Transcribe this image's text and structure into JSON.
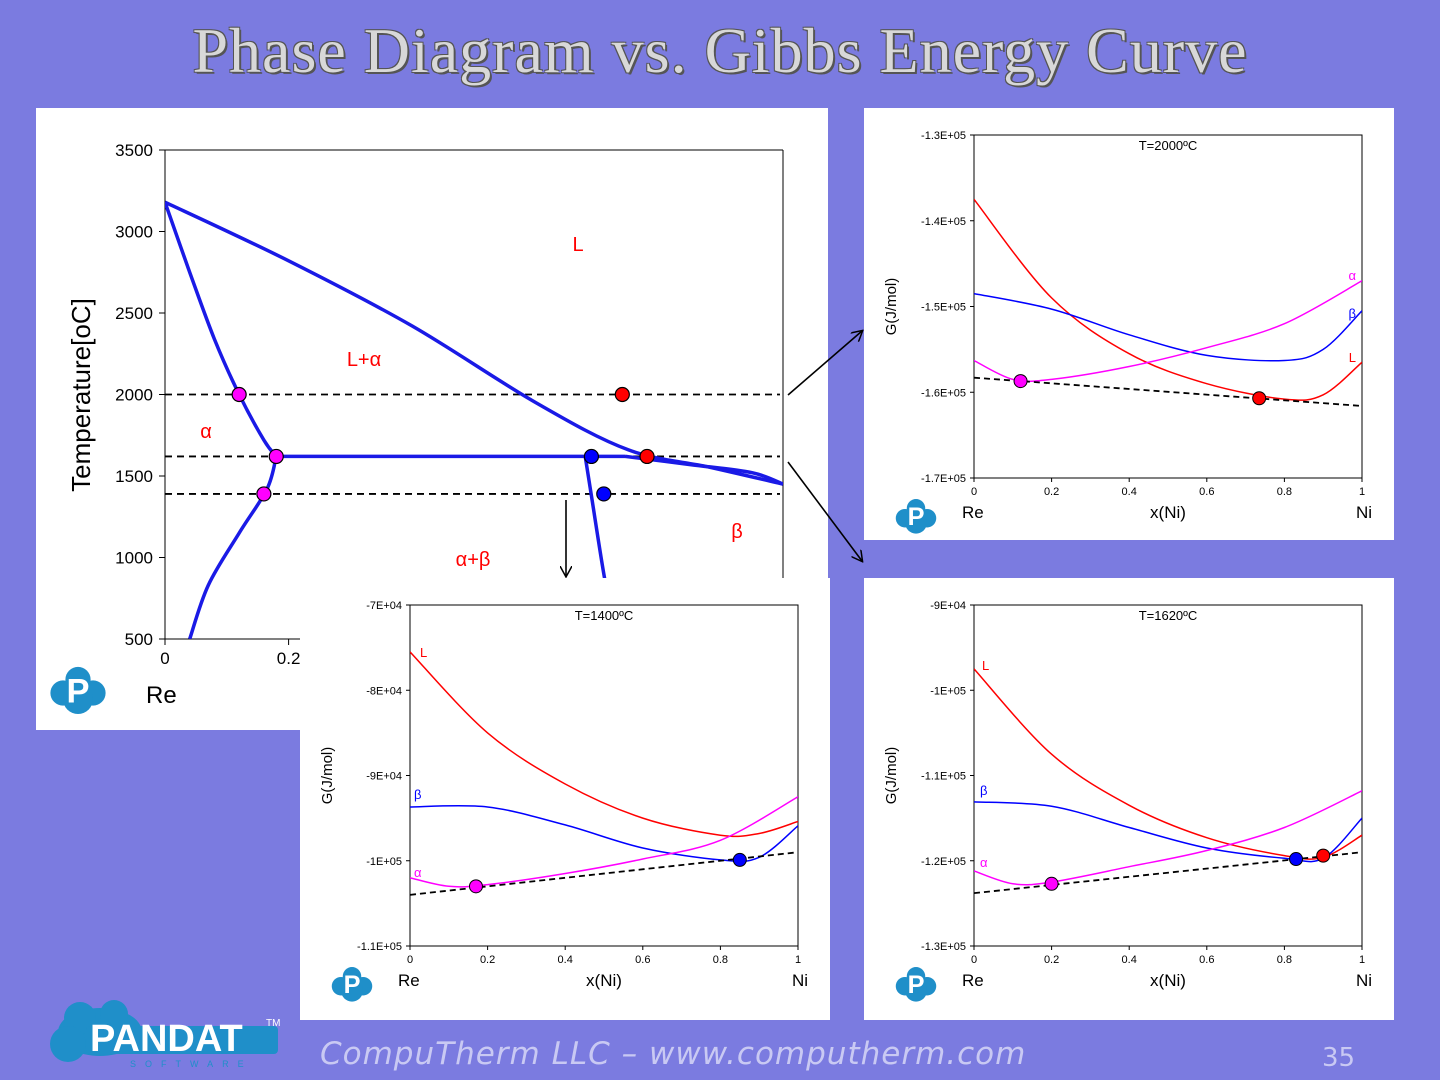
{
  "slide": {
    "title": "Phase Diagram vs. Gibbs Energy Curve",
    "footer": "CompuTherm LLC – www.computherm.com",
    "page_number": "35",
    "logo_text": "PANDAT",
    "logo_sub": "SOFTWARE",
    "logo_tm": "TM",
    "colors": {
      "background": "#7b7be0",
      "liquid": "#ff0000",
      "alpha": "#ff00ff",
      "beta": "#0000ff",
      "boundary": "#1a1ae6"
    }
  },
  "chart_data": [
    {
      "type": "line",
      "ylabel": "Temperature[oC]",
      "xlabel_left": "Re",
      "ylim": [
        500,
        3500
      ],
      "xlim": [
        0,
        1
      ],
      "yticks": [
        "3500",
        "3000",
        "2500",
        "2000",
        "1500",
        "1000",
        "500"
      ],
      "xticks": [
        "0",
        "0.2"
      ],
      "regions": [
        "L",
        "L+α",
        "α",
        "α+β",
        "β"
      ],
      "series": [
        {
          "x": [
            0,
            0.04,
            0.08,
            0.12,
            0.16,
            0.18
          ],
          "y": [
            3180,
            2750,
            2340,
            2000,
            1720,
            1620
          ]
        },
        {
          "x": [
            0,
            0.2,
            0.4,
            0.6,
            0.75,
            0.88,
            1.0
          ],
          "y": [
            3180,
            2820,
            2420,
            1950,
            1660,
            1555,
            1450
          ]
        },
        {
          "x": [
            0.18,
            0.745
          ],
          "y": [
            1620,
            1620
          ]
        },
        {
          "x": [
            0.745,
            0.85,
            0.95,
            1.0
          ],
          "y": [
            1620,
            1570,
            1520,
            1450
          ]
        },
        {
          "x": [
            0.18,
            0.165,
            0.12,
            0.07,
            0.04
          ],
          "y": [
            1620,
            1420,
            1150,
            830,
            500
          ]
        },
        {
          "x": [
            0.68,
            0.69,
            0.71,
            0.73
          ],
          "y": [
            1620,
            1380,
            900,
            500
          ]
        }
      ],
      "tie_lines": [
        2000,
        1620,
        1390
      ],
      "points": [
        {
          "x": 0.12,
          "y": 2000,
          "phase": "alpha"
        },
        {
          "x": 0.74,
          "y": 2000,
          "phase": "liquid"
        },
        {
          "x": 0.18,
          "y": 1620,
          "phase": "alpha"
        },
        {
          "x": 0.69,
          "y": 1620,
          "phase": "beta"
        },
        {
          "x": 0.78,
          "y": 1620,
          "phase": "liquid"
        },
        {
          "x": 0.16,
          "y": 1390,
          "phase": "alpha"
        },
        {
          "x": 0.71,
          "y": 1390,
          "phase": "beta"
        }
      ]
    },
    {
      "type": "line",
      "title": "T=2000ºC",
      "xlabel": "x(Ni)",
      "xlabel_left": "Re",
      "xlabel_right": "Ni",
      "ylabel": "G(J/mol)",
      "xlim": [
        0,
        1
      ],
      "ylim": [
        -170000,
        -130000
      ],
      "yticks": [
        "-1.3E+05",
        "-1.4E+05",
        "-1.5E+05",
        "-1.6E+05",
        "-1.7E+05"
      ],
      "xticks": [
        "0",
        "0.2",
        "0.4",
        "0.6",
        "0.8",
        "1"
      ],
      "series": [
        {
          "name": "L",
          "x": [
            0,
            0.2,
            0.4,
            0.6,
            0.8,
            0.9,
            1.0
          ],
          "y": [
            -137500,
            -149000,
            -155500,
            -159000,
            -160800,
            -160300,
            -156500
          ]
        },
        {
          "name": "β",
          "x": [
            0,
            0.2,
            0.4,
            0.6,
            0.8,
            0.9,
            1.0
          ],
          "y": [
            -148500,
            -150300,
            -153300,
            -155700,
            -156300,
            -155000,
            -150500
          ]
        },
        {
          "name": "α",
          "x": [
            0,
            0.1,
            0.2,
            0.4,
            0.6,
            0.8,
            1.0
          ],
          "y": [
            -156300,
            -158500,
            -158500,
            -157000,
            -154800,
            -152000,
            -147000
          ]
        }
      ],
      "tangent": {
        "x": [
          0,
          1
        ],
        "y": [
          -158300,
          -161600
        ]
      },
      "points": [
        {
          "x": 0.12,
          "y": -158700,
          "phase": "alpha"
        },
        {
          "x": 0.735,
          "y": -160700,
          "phase": "liquid"
        }
      ]
    },
    {
      "type": "line",
      "title": "T=1400ºC",
      "xlabel": "x(Ni)",
      "xlabel_left": "Re",
      "xlabel_right": "Ni",
      "ylabel": "G(J/mol)",
      "xlim": [
        0,
        1
      ],
      "ylim": [
        -110000,
        -70000
      ],
      "yticks": [
        "-7E+04",
        "-8E+04",
        "-9E+04",
        "-1E+05",
        "-1.1E+05"
      ],
      "xticks": [
        "0",
        "0.2",
        "0.4",
        "0.6",
        "0.8",
        "1"
      ],
      "series": [
        {
          "name": "L",
          "x": [
            0,
            0.2,
            0.4,
            0.6,
            0.8,
            0.9,
            1.0
          ],
          "y": [
            -75500,
            -85000,
            -91000,
            -95000,
            -97000,
            -96800,
            -95400
          ]
        },
        {
          "name": "β",
          "x": [
            0,
            0.2,
            0.4,
            0.6,
            0.8,
            0.9,
            1.0
          ],
          "y": [
            -93700,
            -93700,
            -95800,
            -98500,
            -99900,
            -99600,
            -95900
          ]
        },
        {
          "name": "α",
          "x": [
            0,
            0.1,
            0.2,
            0.4,
            0.6,
            0.8,
            1.0
          ],
          "y": [
            -102000,
            -103000,
            -102800,
            -101500,
            -99800,
            -97600,
            -92500
          ]
        }
      ],
      "tangent": {
        "x": [
          0,
          1
        ],
        "y": [
          -104000,
          -99000
        ]
      },
      "points": [
        {
          "x": 0.17,
          "y": -103000,
          "phase": "alpha"
        },
        {
          "x": 0.85,
          "y": -99900,
          "phase": "beta"
        }
      ]
    },
    {
      "type": "line",
      "title": "T=1620ºC",
      "xlabel": "x(Ni)",
      "xlabel_left": "Re",
      "xlabel_right": "Ni",
      "ylabel": "G(J/mol)",
      "xlim": [
        0,
        1
      ],
      "ylim": [
        -130000,
        -90000
      ],
      "yticks": [
        "-9E+04",
        "-1E+05",
        "-1.1E+05",
        "-1.2E+05",
        "-1.3E+05"
      ],
      "xticks": [
        "0",
        "0.2",
        "0.4",
        "0.6",
        "0.8",
        "1"
      ],
      "series": [
        {
          "name": "L",
          "x": [
            0,
            0.2,
            0.4,
            0.6,
            0.8,
            0.9,
            1.0
          ],
          "y": [
            -97500,
            -107500,
            -113500,
            -117300,
            -119400,
            -119600,
            -117000
          ]
        },
        {
          "name": "β",
          "x": [
            0,
            0.2,
            0.4,
            0.6,
            0.8,
            0.9,
            1.0
          ],
          "y": [
            -113100,
            -113600,
            -116100,
            -118500,
            -119700,
            -119700,
            -115000
          ]
        },
        {
          "name": "α",
          "x": [
            0,
            0.1,
            0.2,
            0.4,
            0.6,
            0.8,
            1.0
          ],
          "y": [
            -121200,
            -122700,
            -122500,
            -120700,
            -118800,
            -116100,
            -111800
          ]
        }
      ],
      "tangent": {
        "x": [
          0,
          1
        ],
        "y": [
          -123800,
          -119000
        ]
      },
      "points": [
        {
          "x": 0.2,
          "y": -122700,
          "phase": "alpha"
        },
        {
          "x": 0.83,
          "y": -119800,
          "phase": "beta"
        },
        {
          "x": 0.9,
          "y": -119400,
          "phase": "liquid"
        }
      ]
    }
  ]
}
